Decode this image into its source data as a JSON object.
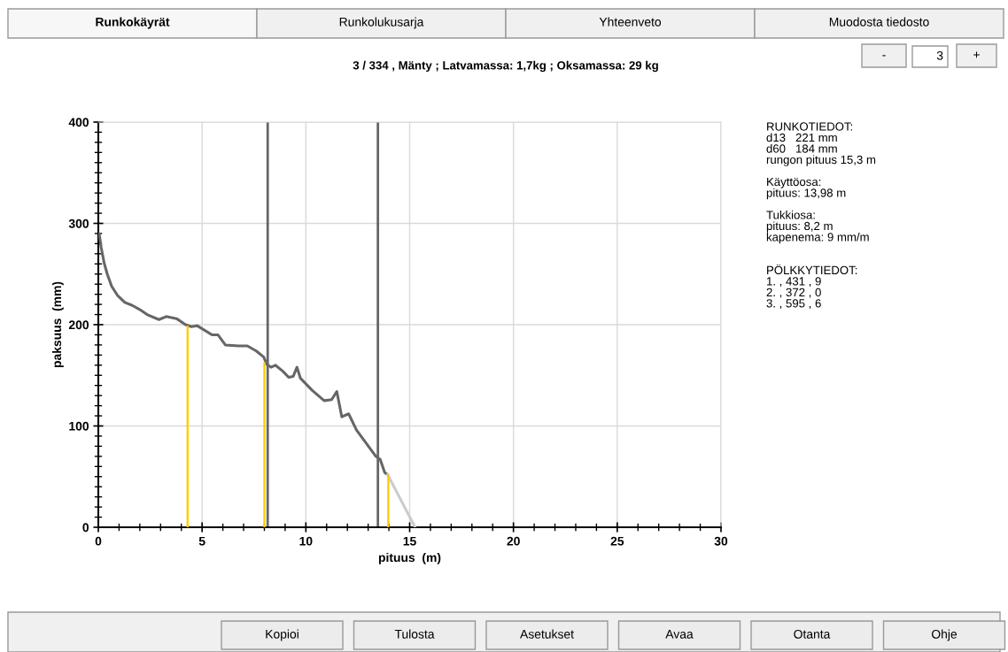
{
  "chart_data": {
    "type": "line",
    "title": "3 / 334 , Mänty ; Latvamassa: 1,7kg ; Oksamassa: 29 kg",
    "xlabel": "pituus  (m)",
    "ylabel": "paksuus  (mm)",
    "series": [
      {
        "color": "#666666",
        "x": [
          0.04,
          0.14,
          0.28,
          0.43,
          0.64,
          0.92,
          1.28,
          1.64,
          1.99,
          2.35,
          2.92,
          3.27,
          3.77,
          4.2,
          4.48,
          4.76,
          5.48,
          5.76,
          6.12,
          6.76,
          7.18,
          7.61,
          7.97,
          8.11,
          8.32,
          8.53,
          8.89,
          9.17,
          9.39,
          9.57,
          9.74,
          10.31,
          10.88,
          11.24,
          11.49,
          11.73,
          12.06,
          12.44,
          12.87,
          13.37,
          13.58,
          13.8,
          13.94
        ],
        "values": [
          290,
          276,
          261,
          250,
          238,
          229,
          222,
          219,
          215,
          210,
          205,
          208,
          206,
          200,
          198,
          199,
          190,
          190,
          180,
          179,
          179,
          174,
          168,
          161,
          158,
          160,
          154,
          148,
          149,
          158,
          147,
          135,
          125,
          126,
          134,
          109,
          112,
          96,
          84,
          70,
          67,
          54,
          52
        ]
      },
      {
        "color": "#cccccc",
        "x": [
          13.94,
          15.26
        ],
        "values": [
          52,
          0
        ]
      },
      {
        "type": "bar",
        "color": "#ffcc00",
        "x": [
          4.3,
          8.0,
          13.97
        ],
        "values": [
          199,
          163,
          52
        ]
      }
    ],
    "ref_lines": [
      {
        "axis": "x",
        "value": 8.16,
        "color": "#666666"
      },
      {
        "axis": "x",
        "value": 13.47,
        "color": "#666666"
      }
    ],
    "xlim": [
      0,
      30
    ],
    "ylim": [
      0,
      400
    ],
    "xticks": [
      0,
      {
        "value": 1,
        "label": null
      },
      {
        "value": 2,
        "label": null
      },
      {
        "value": 3,
        "label": null
      },
      {
        "value": 4,
        "label": null
      },
      5,
      {
        "value": 6,
        "label": null
      },
      {
        "value": 7,
        "label": null
      },
      {
        "value": 8,
        "label": null
      },
      {
        "value": 9,
        "label": null
      },
      10,
      {
        "value": 11,
        "label": null
      },
      {
        "value": 12,
        "label": null
      },
      {
        "value": 13,
        "label": null
      },
      {
        "value": 14,
        "label": null
      },
      15,
      {
        "value": 16,
        "label": null
      },
      {
        "value": 17,
        "label": null
      },
      {
        "value": 18,
        "label": null
      },
      {
        "value": 19,
        "label": null
      },
      20,
      {
        "value": 21,
        "label": null
      },
      {
        "value": 22,
        "label": null
      },
      {
        "value": 23,
        "label": null
      },
      {
        "value": 24,
        "label": null
      },
      25,
      {
        "value": 26,
        "label": null
      },
      {
        "value": 27,
        "label": null
      },
      {
        "value": 28,
        "label": null
      },
      {
        "value": 29,
        "label": null
      },
      30
    ],
    "yticks": [
      0,
      {
        "value": 10,
        "label": null
      },
      {
        "value": 20,
        "label": null
      },
      {
        "value": 30,
        "label": null
      },
      {
        "value": 40,
        "label": null
      },
      {
        "value": 50,
        "label": null
      },
      {
        "value": 60,
        "label": null
      },
      {
        "value": 70,
        "label": null
      },
      {
        "value": 80,
        "label": null
      },
      {
        "value": 90,
        "label": null
      },
      100,
      {
        "value": 110,
        "label": null
      },
      {
        "value": 120,
        "label": null
      },
      {
        "value": 130,
        "label": null
      },
      {
        "value": 140,
        "label": null
      },
      {
        "value": 150,
        "label": null
      },
      {
        "value": 160,
        "label": null
      },
      {
        "value": 170,
        "label": null
      },
      {
        "value": 180,
        "label": null
      },
      {
        "value": 190,
        "label": null
      },
      200,
      {
        "value": 210,
        "label": null
      },
      {
        "value": 220,
        "label": null
      },
      {
        "value": 230,
        "label": null
      },
      {
        "value": 240,
        "label": null
      },
      {
        "value": 250,
        "label": null
      },
      {
        "value": 260,
        "label": null
      },
      {
        "value": 270,
        "label": null
      },
      {
        "value": 280,
        "label": null
      },
      {
        "value": 290,
        "label": null
      },
      300,
      {
        "value": 310,
        "label": null
      },
      {
        "value": 320,
        "label": null
      },
      {
        "value": 330,
        "label": null
      },
      {
        "value": 340,
        "label": null
      },
      {
        "value": 350,
        "label": null
      },
      {
        "value": 360,
        "label": null
      },
      {
        "value": 370,
        "label": null
      },
      {
        "value": 380,
        "label": null
      },
      {
        "value": 390,
        "label": null
      },
      400
    ],
    "grid": true,
    "annotations": [
      "Runkokäyrät",
      "Runkolukusarja",
      "Yhteenveto",
      "Muodosta tiedosto",
      "-",
      "3",
      "+",
      "RUNKOTIEDOT:\nd13   221 mm\nd60   184 mm\nrungon pituus 15,3 m\n\nKäyttöosa:\npituus: 13,98 m\n\nTukkiosa:\npituus: 8,2 m\nkapenema: 9 mm/m\n\n\nPÖLKKYTIEDOT:\n1. , 431 , 9\n2. , 372 , 0\n3. , 595 , 6",
      "Kopioi",
      "Tulosta",
      "Asetukset",
      "Avaa",
      "Otanta",
      "Ohje"
    ]
  }
}
